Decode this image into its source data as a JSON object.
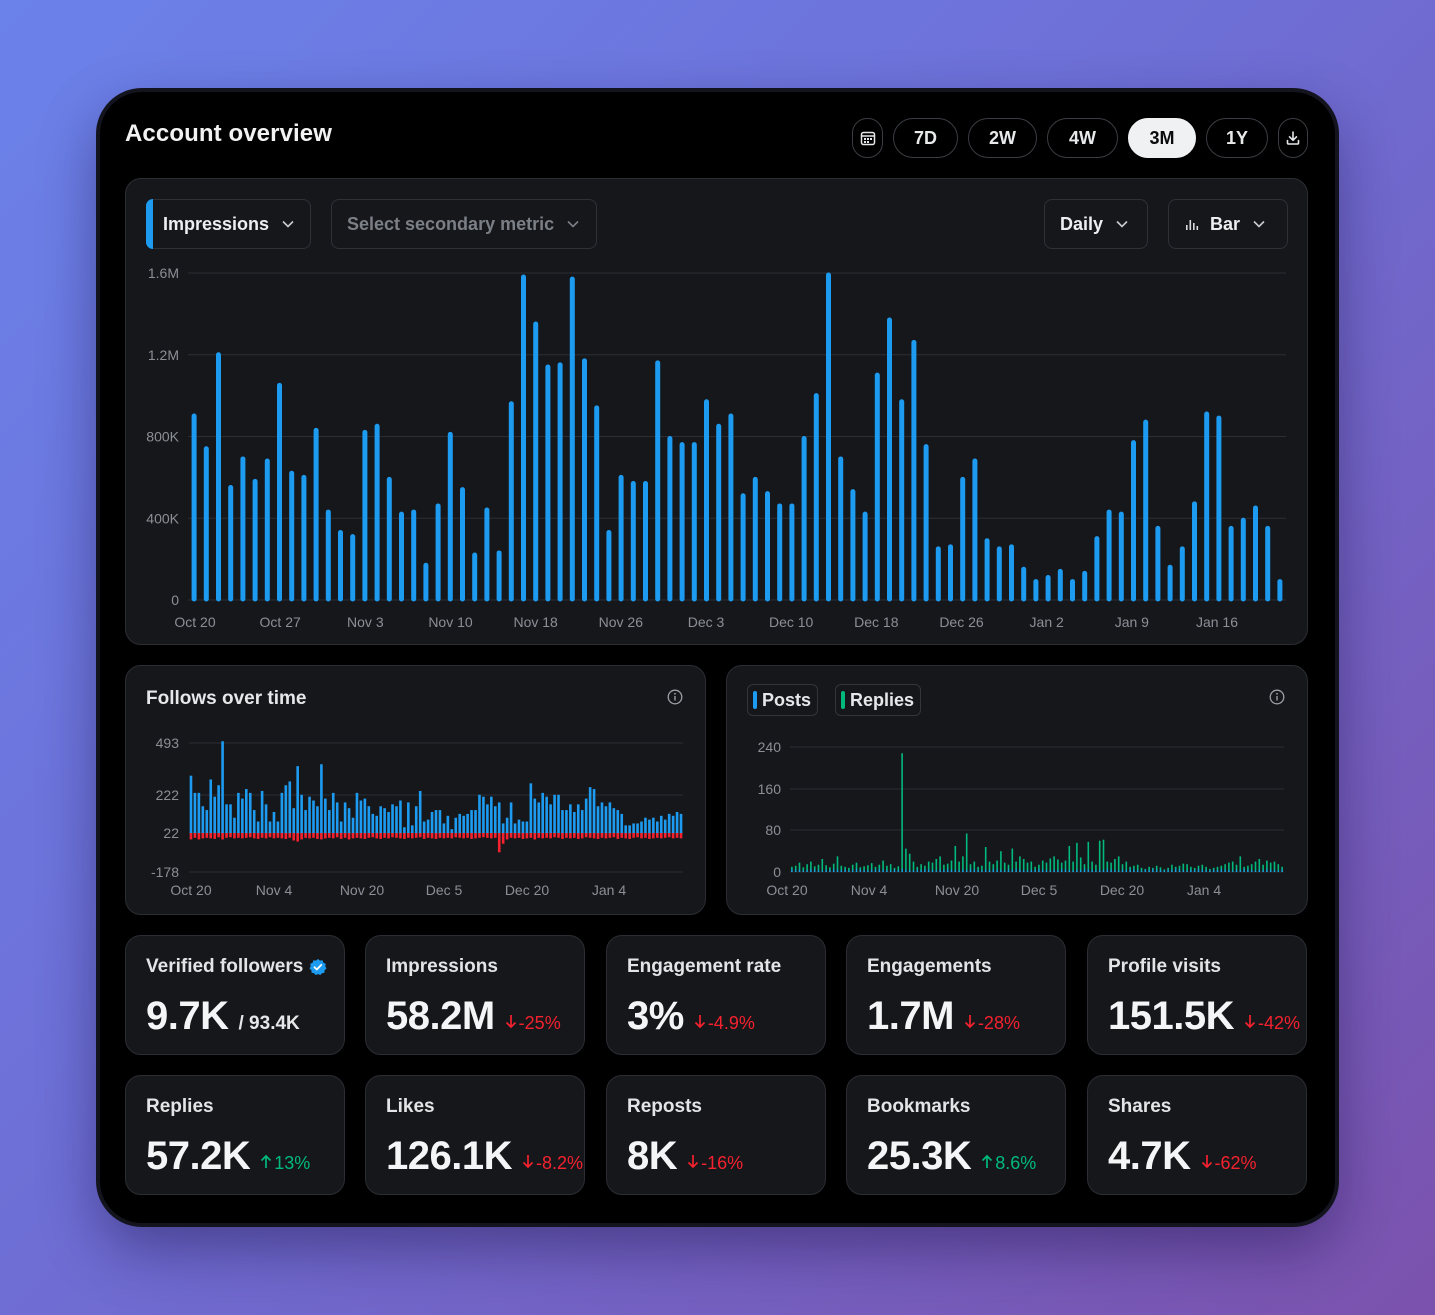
{
  "header": {
    "title": "Account overview",
    "ranges": [
      "7D",
      "2W",
      "4W",
      "3M",
      "1Y"
    ],
    "active_range": "3M",
    "calendar_icon": "calendar-icon",
    "download_icon": "download-icon"
  },
  "main_chart": {
    "primary_metric": "Impressions",
    "secondary_placeholder": "Select secondary metric",
    "interval": "Daily",
    "chart_type": "Bar",
    "colors": {
      "bar": "#1d9bf0",
      "accent": "#1d9bf0"
    }
  },
  "follows_card": {
    "title": "Follows over time",
    "colors": {
      "gain": "#1d9bf0",
      "loss": "#f4212e"
    }
  },
  "posts_card": {
    "legend": [
      {
        "label": "Posts",
        "color": "#1d9bf0"
      },
      {
        "label": "Replies",
        "color": "#00ba7c"
      }
    ]
  },
  "stats": [
    {
      "label": "Verified followers",
      "value": "9.7K",
      "total": "/ 93.4K",
      "verified_icon": true
    },
    {
      "label": "Impressions",
      "value": "58.2M",
      "delta": "-25%",
      "direction": "down"
    },
    {
      "label": "Engagement rate",
      "value": "3%",
      "delta": "-4.9%",
      "direction": "down"
    },
    {
      "label": "Engagements",
      "value": "1.7M",
      "delta": "-28%",
      "direction": "down"
    },
    {
      "label": "Profile visits",
      "value": "151.5K",
      "delta": "-42%",
      "direction": "down"
    },
    {
      "label": "Replies",
      "value": "57.2K",
      "delta": "13%",
      "direction": "up"
    },
    {
      "label": "Likes",
      "value": "126.1K",
      "delta": "-8.2%",
      "direction": "down"
    },
    {
      "label": "Reposts",
      "value": "8K",
      "delta": "-16%",
      "direction": "down"
    },
    {
      "label": "Bookmarks",
      "value": "25.3K",
      "delta": "8.6%",
      "direction": "up"
    },
    {
      "label": "Shares",
      "value": "4.7K",
      "delta": "-62%",
      "direction": "down"
    }
  ],
  "chart_data": [
    {
      "type": "bar",
      "ylim": [
        0,
        1600000
      ],
      "y_ticks": [
        "0",
        "400K",
        "800K",
        "1.2M",
        "1.6M"
      ],
      "x_tick_labels": [
        "Oct 20",
        "Oct 27",
        "Nov 3",
        "Nov 10",
        "Nov 18",
        "Nov 26",
        "Dec 3",
        "Dec 10",
        "Dec 18",
        "Dec 26",
        "Jan 2",
        "Jan 9",
        "Jan 16"
      ],
      "grid": true,
      "values": [
        910000,
        750000,
        1210000,
        560000,
        700000,
        590000,
        690000,
        1060000,
        630000,
        610000,
        840000,
        440000,
        340000,
        320000,
        830000,
        860000,
        600000,
        430000,
        440000,
        180000,
        470000,
        820000,
        550000,
        230000,
        450000,
        240000,
        970000,
        1590000,
        1360000,
        1150000,
        1160000,
        1580000,
        1180000,
        950000,
        340000,
        610000,
        580000,
        580000,
        1170000,
        800000,
        770000,
        770000,
        980000,
        860000,
        910000,
        520000,
        600000,
        530000,
        470000,
        470000,
        800000,
        1010000,
        1600000,
        700000,
        540000,
        430000,
        1110000,
        1380000,
        980000,
        1270000,
        760000,
        260000,
        270000,
        600000,
        690000,
        300000,
        260000,
        270000,
        160000,
        100000,
        120000,
        150000,
        100000,
        140000,
        310000,
        440000,
        430000,
        780000,
        880000,
        360000,
        170000,
        260000,
        480000,
        920000,
        900000,
        360000,
        400000,
        460000,
        360000,
        100000
      ]
    },
    {
      "type": "bar",
      "title": "Follows over time",
      "y_ticks": [
        "-178",
        "22",
        "222",
        "493"
      ],
      "x_tick_labels": [
        "Oct 20",
        "Nov 4",
        "Nov 20",
        "Dec 5",
        "Dec 20",
        "Jan 4"
      ],
      "grid": true,
      "series": [
        {
          "name": "",
          "values": [
            300,
            210,
            210,
            140,
            120,
            280,
            190,
            250,
            480,
            150,
            150,
            80,
            210,
            180,
            230,
            210,
            120,
            60,
            220,
            150,
            60,
            110,
            60,
            210,
            250,
            270,
            130,
            350,
            200,
            120,
            190,
            170,
            140,
            360,
            180,
            120,
            210,
            160,
            60,
            160,
            130,
            80,
            210,
            170,
            180,
            140,
            100,
            90,
            140,
            130,
            110,
            150,
            140,
            170,
            30,
            160,
            40,
            140,
            220,
            60,
            70,
            110,
            120,
            120,
            50,
            90,
            20,
            80,
            100,
            90,
            100,
            120,
            120,
            200,
            190,
            150,
            190,
            140,
            160,
            50,
            80,
            160,
            50,
            70,
            60,
            60,
            260,
            180,
            160,
            210,
            190,
            150,
            200,
            200,
            120,
            120,
            150,
            110,
            150,
            120,
            180,
            240,
            230,
            140,
            160,
            140,
            160,
            130,
            120,
            100,
            40,
            40,
            50,
            50,
            60,
            80,
            70,
            80,
            60,
            90,
            70,
            100,
            90,
            110,
            100
          ]
        },
        {
          "name": "",
          "values": [
            -60,
            -45,
            -60,
            -50,
            -45,
            -50,
            -55,
            -40,
            -60,
            -45,
            -40,
            -50,
            -45,
            -50,
            -45,
            -40,
            -50,
            -55,
            -45,
            -50,
            -40,
            -50,
            -45,
            -50,
            -55,
            -45,
            -70,
            -80,
            -60,
            -45,
            -50,
            -45,
            -55,
            -60,
            -50,
            -45,
            -50,
            -40,
            -55,
            -45,
            -60,
            -50,
            -45,
            -50,
            -55,
            -45,
            -40,
            -50,
            -55,
            -45,
            -50,
            -40,
            -45,
            -50,
            -55,
            -45,
            -50,
            -45,
            -40,
            -55,
            -45,
            -50,
            -55,
            -45,
            -50,
            -45,
            -50,
            -40,
            -45,
            -50,
            -45,
            -55,
            -50,
            -45,
            -40,
            -45,
            -50,
            -45,
            -180,
            -100,
            -60,
            -45,
            -50,
            -45,
            -55,
            -50,
            -45,
            -60,
            -45,
            -50,
            -45,
            -50,
            -40,
            -45,
            -55,
            -45,
            -50,
            -45,
            -55,
            -50,
            -40,
            -45,
            -50,
            -55,
            -45,
            -50,
            -45,
            -40,
            -55,
            -45,
            -50,
            -55,
            -45,
            -40,
            -50,
            -45,
            -55,
            -50,
            -45,
            -50,
            -45,
            -40,
            -50,
            -45,
            -50
          ]
        }
      ]
    },
    {
      "type": "bar",
      "y_ticks": [
        "0",
        "80",
        "160",
        "240"
      ],
      "ylim": [
        0,
        240
      ],
      "x_tick_labels": [
        "Oct 20",
        "Nov 4",
        "Nov 20",
        "Dec 5",
        "Dec 20",
        "Jan 4"
      ],
      "grid": true,
      "series": [
        {
          "name": "Posts",
          "values": [
            6,
            4,
            5,
            3,
            4,
            6,
            5,
            4,
            3,
            5,
            4,
            6,
            5,
            4,
            5,
            3,
            4,
            6,
            5,
            4,
            3,
            5,
            4,
            6,
            5,
            4,
            3,
            5,
            4,
            6,
            5,
            4,
            3,
            5,
            4,
            6,
            5,
            4,
            3,
            5,
            4,
            6,
            5,
            4,
            3,
            5,
            4,
            6,
            5,
            4,
            3,
            5,
            4,
            6,
            5,
            4,
            3,
            5,
            4,
            6,
            5,
            4,
            3,
            5,
            4,
            6,
            5,
            4,
            3,
            5,
            4,
            6,
            5,
            4,
            3,
            5,
            4,
            6,
            5,
            4,
            3,
            5,
            4,
            6,
            5,
            4,
            3,
            5,
            4,
            6,
            5,
            4,
            3,
            5,
            4,
            6,
            5,
            4,
            3,
            5,
            4,
            6,
            5,
            4,
            3,
            5,
            4,
            6,
            5,
            4,
            3,
            5,
            4,
            6,
            5,
            4,
            3,
            5,
            4,
            6,
            5,
            4,
            3,
            5,
            4,
            6,
            5,
            4,
            3,
            5
          ]
        },
        {
          "name": "Replies",
          "values": [
            10,
            12,
            18,
            9,
            15,
            20,
            11,
            14,
            25,
            13,
            9,
            16,
            30,
            12,
            10,
            8,
            14,
            18,
            9,
            11,
            13,
            17,
            10,
            14,
            22,
            12,
            15,
            8,
            11,
            228,
            45,
            35,
            20,
            10,
            15,
            12,
            20,
            18,
            25,
            30,
            14,
            16,
            22,
            50,
            20,
            30,
            74,
            15,
            20,
            10,
            12,
            48,
            20,
            15,
            22,
            40,
            18,
            14,
            45,
            20,
            30,
            25,
            18,
            20,
            10,
            14,
            22,
            18,
            26,
            30,
            24,
            18,
            22,
            50,
            20,
            56,
            28,
            15,
            58,
            20,
            14,
            60,
            62,
            20,
            18,
            25,
            30,
            15,
            20,
            10,
            12,
            14,
            8,
            6,
            10,
            8,
            12,
            9,
            5,
            8,
            14,
            10,
            12,
            16,
            15,
            10,
            8,
            12,
            14,
            10,
            6,
            8,
            10,
            12,
            15,
            18,
            20,
            14,
            30,
            10,
            12,
            15,
            20,
            25,
            14,
            22,
            18,
            20,
            15,
            10
          ]
        }
      ]
    }
  ]
}
